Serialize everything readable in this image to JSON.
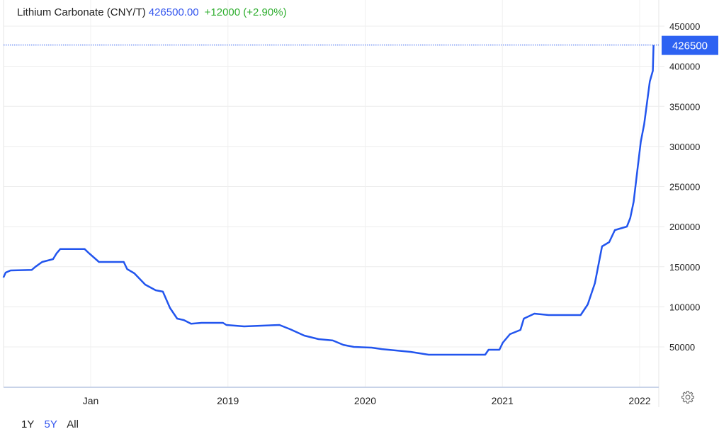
{
  "header": {
    "name": "Lithium Carbonate (CNY/T)",
    "price": "426500.00",
    "change": "+12000 (+2.90%)"
  },
  "range_buttons": [
    {
      "label": "1Y",
      "active": false
    },
    {
      "label": "5Y",
      "active": true
    },
    {
      "label": "All",
      "active": false
    }
  ],
  "settings_icon": "gear-icon",
  "colors": {
    "line": "#2255ee",
    "last_price_badge": "#2d62f2",
    "change_positive": "#2fae2f",
    "price": "#3355ee"
  },
  "chart_data": {
    "type": "line",
    "title": "Lithium Carbonate (CNY/T)",
    "xlabel": "",
    "ylabel": "",
    "ylim": [
      0,
      450000
    ],
    "y_ticks": [
      "50000",
      "100000",
      "150000",
      "200000",
      "250000",
      "300000",
      "350000",
      "400000",
      "450000"
    ],
    "x_ticks": [
      {
        "date": "2018-01-01",
        "label": "Jan"
      },
      {
        "date": "2019-01-01",
        "label": "2019"
      },
      {
        "date": "2020-01-01",
        "label": "2020"
      },
      {
        "date": "2021-01-01",
        "label": "2021"
      },
      {
        "date": "2022-01-01",
        "label": "2022"
      }
    ],
    "grid": true,
    "last_value_label": "426500",
    "series": [
      {
        "x": [
          "2017-05-14",
          "2017-05-20",
          "2017-06-02",
          "2017-07-28",
          "2017-08-07",
          "2017-08-25",
          "2017-09-23",
          "2017-10-02",
          "2017-10-12",
          "2017-12-16",
          "2017-12-26",
          "2018-01-23",
          "2018-03-30",
          "2018-04-08",
          "2018-04-27",
          "2018-05-26",
          "2018-06-23",
          "2018-07-12",
          "2018-07-31",
          "2018-08-19",
          "2018-09-06",
          "2018-09-25",
          "2018-10-23",
          "2018-12-19",
          "2018-12-28",
          "2019-02-13",
          "2019-05-18",
          "2019-06-16",
          "2019-07-23",
          "2019-08-30",
          "2019-10-07",
          "2019-11-04",
          "2019-12-02",
          "2020-01-18",
          "2020-02-15",
          "2020-05-01",
          "2020-06-18",
          "2020-11-16",
          "2020-11-25",
          "2020-12-24",
          "2021-01-02",
          "2021-01-21",
          "2021-02-18",
          "2021-02-27",
          "2021-03-27",
          "2021-05-04",
          "2021-07-28",
          "2021-08-16",
          "2021-09-04",
          "2021-09-23",
          "2021-10-12",
          "2021-10-27",
          "2021-11-28",
          "2021-12-07",
          "2021-12-16",
          "2021-12-26",
          "2022-01-04",
          "2022-01-13",
          "2022-01-23",
          "2022-01-28",
          "2022-02-05",
          "2022-02-07"
        ],
        "values": [
          136500,
          142700,
          145400,
          146000,
          150000,
          156000,
          159500,
          166500,
          172000,
          172000,
          167500,
          156000,
          156000,
          147000,
          141800,
          127700,
          120600,
          119000,
          98600,
          85300,
          83500,
          79000,
          80000,
          80000,
          77400,
          75600,
          77400,
          72000,
          64100,
          59700,
          58000,
          52600,
          50000,
          49100,
          47300,
          43800,
          40300,
          40300,
          46500,
          46500,
          55300,
          65900,
          71200,
          85300,
          91500,
          89700,
          89700,
          103000,
          129500,
          175400,
          180700,
          195700,
          200100,
          210700,
          231000,
          270700,
          306000,
          328000,
          363500,
          381000,
          394400,
          426500
        ]
      }
    ]
  }
}
